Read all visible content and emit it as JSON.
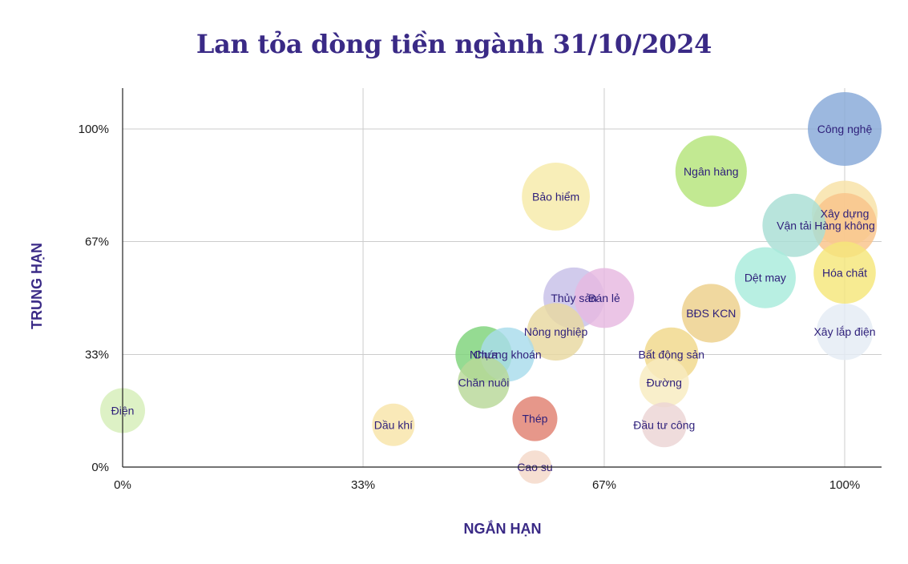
{
  "chart_data": {
    "type": "scatter",
    "title": "Lan tỏa dòng tiền ngành 31/10/2024",
    "xlabel": "NGẮN HẠN",
    "ylabel": "TRUNG HẠN",
    "xlim": [
      0,
      1.05
    ],
    "ylim": [
      0,
      1.1
    ],
    "x_ticks": [
      0,
      0.333,
      0.667,
      1.0
    ],
    "y_ticks": [
      0,
      0.333,
      0.667,
      1.0
    ],
    "x_tick_labels": [
      "0%",
      "33%",
      "67%",
      "100%"
    ],
    "y_tick_labels": [
      "0%",
      "33%",
      "67%",
      "100%"
    ],
    "grid": true,
    "points": [
      {
        "label": "Công nghệ",
        "x": 1.0,
        "y": 1.0,
        "r": 1.0,
        "color": "#86a8d8"
      },
      {
        "label": "Ngân hàng",
        "x": 0.815,
        "y": 0.875,
        "r": 0.96,
        "color": "#b5e47a"
      },
      {
        "label": "Bảo hiểm",
        "x": 0.6,
        "y": 0.8,
        "r": 0.9,
        "color": "#f7eaa8"
      },
      {
        "label": "Xây dựng",
        "x": 1.0,
        "y": 0.75,
        "r": 0.86,
        "color": "#f8e2a6"
      },
      {
        "label": "Hàng không",
        "x": 1.0,
        "y": 0.715,
        "r": 0.84,
        "color": "#f9c38a"
      },
      {
        "label": "Vận tải",
        "x": 0.93,
        "y": 0.715,
        "r": 0.82,
        "color": "#a8ded4"
      },
      {
        "label": "Hóa chất",
        "x": 1.0,
        "y": 0.575,
        "r": 0.8,
        "color": "#f5e67a"
      },
      {
        "label": "Dệt may",
        "x": 0.89,
        "y": 0.56,
        "r": 0.78,
        "color": "#a8ecdc"
      },
      {
        "label": "Thủy sản",
        "x": 0.625,
        "y": 0.5,
        "r": 0.78,
        "color": "#c7c0e8"
      },
      {
        "label": "Bán lẻ",
        "x": 0.667,
        "y": 0.5,
        "r": 0.76,
        "color": "#e6b8e0"
      },
      {
        "label": "BĐS KCN",
        "x": 0.815,
        "y": 0.455,
        "r": 0.74,
        "color": "#edd08a"
      },
      {
        "label": "Xây lắp điện",
        "x": 1.0,
        "y": 0.4,
        "r": 0.7,
        "color": "#e4ecf4"
      },
      {
        "label": "Nông nghiệp",
        "x": 0.6,
        "y": 0.4,
        "r": 0.72,
        "color": "#e8d8a0"
      },
      {
        "label": "Chứng khoán",
        "x": 0.533,
        "y": 0.333,
        "r": 0.66,
        "color": "#a8dcec"
      },
      {
        "label": "Nhựa",
        "x": 0.5,
        "y": 0.333,
        "r": 0.7,
        "color": "#7ed37a"
      },
      {
        "label": "Bất động sản",
        "x": 0.76,
        "y": 0.333,
        "r": 0.66,
        "color": "#f0d88a"
      },
      {
        "label": "Chăn nuôi",
        "x": 0.5,
        "y": 0.25,
        "r": 0.62,
        "color": "#b8d898"
      },
      {
        "label": "Đường",
        "x": 0.75,
        "y": 0.25,
        "r": 0.58,
        "color": "#f8ecc0"
      },
      {
        "label": "Điện",
        "x": 0.0,
        "y": 0.167,
        "r": 0.5,
        "color": "#d6eeb8"
      },
      {
        "label": "Dầu khí",
        "x": 0.375,
        "y": 0.125,
        "r": 0.46,
        "color": "#f8e4a8"
      },
      {
        "label": "Thép",
        "x": 0.571,
        "y": 0.143,
        "r": 0.5,
        "color": "#e08070"
      },
      {
        "label": "Đầu tư công",
        "x": 0.75,
        "y": 0.125,
        "r": 0.5,
        "color": "#ecd4d4"
      },
      {
        "label": "Cao su",
        "x": 0.571,
        "y": 0.0,
        "r": 0.3,
        "color": "#f4d8c8"
      }
    ]
  }
}
